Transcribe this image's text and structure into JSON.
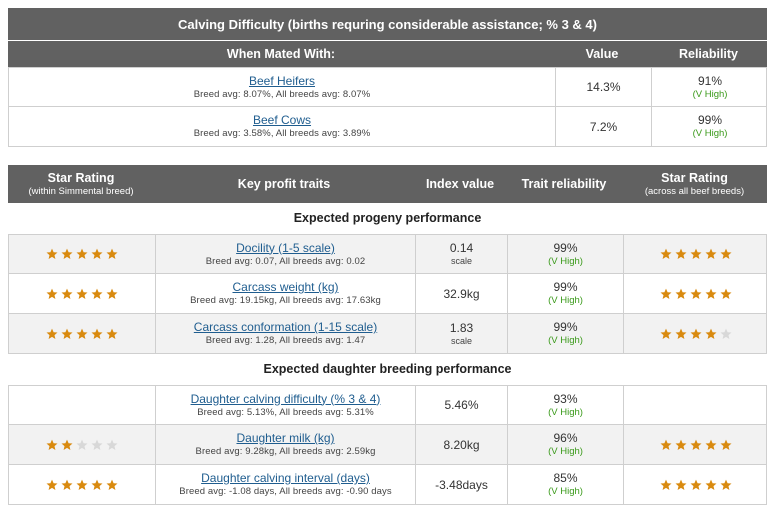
{
  "calving": {
    "title": "Calving Difficulty (births requring considerable assistance; % 3 & 4)",
    "headers": {
      "mated": "When Mated With:",
      "value": "Value",
      "reliability": "Reliability"
    },
    "rows": [
      {
        "name": "Beef Heifers",
        "avg": "Breed avg: 8.07%, All breeds avg: 8.07%",
        "value": "14.3%",
        "rel": "91%",
        "rel_label": "(V High)"
      },
      {
        "name": "Beef Cows",
        "avg": "Breed avg: 3.58%, All breeds avg: 3.89%",
        "value": "7.2%",
        "rel": "99%",
        "rel_label": "(V High)"
      }
    ]
  },
  "traits": {
    "headers": {
      "star_left": "Star Rating",
      "star_left_sub": "(within Simmental breed)",
      "key": "Key profit traits",
      "index": "Index value",
      "trait_rel": "Trait reliability",
      "star_right": "Star Rating",
      "star_right_sub": "(across all beef breeds)"
    },
    "section1": "Expected progeny performance",
    "section2": "Expected daughter breeding performance",
    "rows": [
      {
        "name": "Docility (1-5 scale)",
        "avg": "Breed avg: 0.07, All breeds avg: 0.02",
        "value": "0.14",
        "unit": "scale",
        "rel": "99%",
        "rel_label": "(V High)",
        "stars_left": 5,
        "stars_right": 5
      },
      {
        "name": "Carcass weight (kg)",
        "avg": "Breed avg: 19.15kg, All breeds avg: 17.63kg",
        "value": "32.9kg",
        "unit": "",
        "rel": "99%",
        "rel_label": "(V High)",
        "stars_left": 5,
        "stars_right": 5
      },
      {
        "name": "Carcass conformation (1-15 scale)",
        "avg": "Breed avg: 1.28, All breeds avg: 1.47",
        "value": "1.83",
        "unit": "scale",
        "rel": "99%",
        "rel_label": "(V High)",
        "stars_left": 5,
        "stars_right": 4
      },
      {
        "name": "Daughter calving difficulty (% 3 & 4)",
        "avg": "Breed avg: 5.13%, All breeds avg: 5.31%",
        "value": "5.46%",
        "unit": "",
        "rel": "93%",
        "rel_label": "(V High)",
        "stars_left": 0,
        "stars_right": 0
      },
      {
        "name": "Daughter milk (kg)",
        "avg": "Breed avg: 9.28kg, All breeds avg: 2.59kg",
        "value": "8.20kg",
        "unit": "",
        "rel": "96%",
        "rel_label": "(V High)",
        "stars_left": 2,
        "stars_right": 5
      },
      {
        "name": "Daughter calving interval (days)",
        "avg": "Breed avg: -1.08 days, All breeds avg: -0.90 days",
        "value": "-3.48days",
        "unit": "",
        "rel": "85%",
        "rel_label": "(V High)",
        "stars_left": 5,
        "stars_right": 5
      }
    ]
  },
  "colors": {
    "header_bg": "#616161",
    "star_on": "#d98a0f",
    "star_off": "#d8d8d8",
    "link": "#1f5d8f",
    "reliability": "#3a9a1a"
  }
}
